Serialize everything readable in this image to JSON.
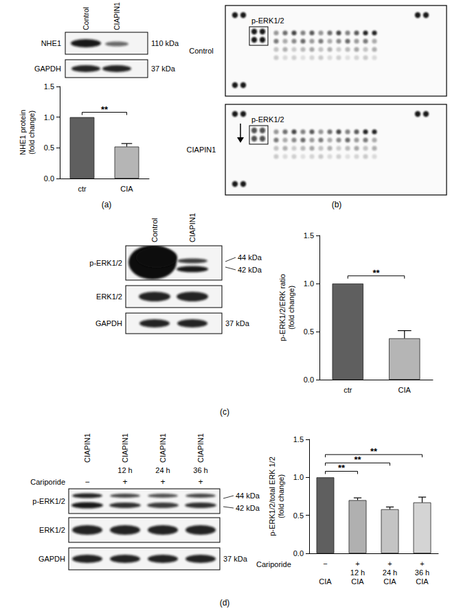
{
  "chart_data": [
    {
      "type": "bar",
      "categories": [
        "ctr",
        "CIA"
      ],
      "values": [
        1.0,
        0.52
      ],
      "errors": [
        0,
        0.05
      ],
      "colors": [
        "#5f5f5f",
        "#b5b5b5"
      ],
      "ylabel": "NHE1 protein\n(fold change)",
      "ylim": [
        0,
        1.5
      ],
      "yticks": [
        {
          "value": 0,
          "label": "0.0"
        },
        0.5,
        {
          "value": 1,
          "label": "1.0"
        },
        1.5
      ],
      "grid": false,
      "significance": [
        {
          "from": "ctr",
          "to": "CIA",
          "label": "**"
        }
      ]
    },
    {
      "type": "bar",
      "categories": [
        "ctr",
        "CIA"
      ],
      "values": [
        1.0,
        0.43
      ],
      "errors": [
        0,
        0.08
      ],
      "colors": [
        "#5f5f5f",
        "#b5b5b5"
      ],
      "ylabel": "p-ERK1/2/ERK ratio\n(fold change)",
      "ylim": [
        0,
        1.5
      ],
      "yticks": [
        {
          "value": 0,
          "label": "0.0"
        },
        0.5,
        {
          "value": 1,
          "label": "1.0"
        },
        1.5
      ],
      "grid": false,
      "significance": [
        {
          "from": "ctr",
          "to": "CIA",
          "label": "**"
        }
      ]
    },
    {
      "type": "bar",
      "categories": [
        "CIA",
        "12 h\nCIA",
        "24 h\nCIA",
        "36 h\nCIA"
      ],
      "values": [
        1.0,
        0.7,
        0.58,
        0.67
      ],
      "errors": [
        0,
        0.03,
        0.03,
        0.07
      ],
      "colors": [
        "#5f5f5f",
        "#b0b0b0",
        "#c4c4c4",
        "#d4d4d4"
      ],
      "treatment": {
        "label": "Cariporide",
        "values": [
          "−",
          "+",
          "+",
          "+"
        ]
      },
      "ylabel": "p-ERK1/2/total ERK 1/2\n(fold change)",
      "ylim": [
        0,
        1.5
      ],
      "yticks": [
        {
          "value": 0,
          "label": "0.0"
        },
        0.5,
        {
          "value": 1,
          "label": "1.0"
        },
        1.5
      ],
      "grid": false,
      "significance": [
        {
          "from": "CIA",
          "to": "12 h\nCIA",
          "label": "**"
        },
        {
          "from": "CIA",
          "to": "24 h\nCIA",
          "label": "**"
        },
        {
          "from": "CIA",
          "to": "36 h\nCIA",
          "label": "**"
        }
      ]
    }
  ],
  "panels": [
    {
      "label": "(a)",
      "blot": {
        "columns": [
          "Control",
          "CIAPIN1"
        ],
        "rows": [
          {
            "name": "NHE1",
            "kda": [
              "110 kDa"
            ]
          },
          {
            "name": "GAPDH",
            "kda": [
              "37 kDa"
            ]
          }
        ]
      }
    },
    {
      "label": "(b)",
      "array": {
        "membranes": [
          "Control",
          "CIAPIN1"
        ],
        "highlight": "p-ERK1/2"
      }
    },
    {
      "label": "(c)",
      "blot": {
        "columns": [
          "Control",
          "CIAPIN1"
        ],
        "rows": [
          {
            "name": "p-ERK1/2",
            "kda": [
              "44 kDa",
              "42 kDa"
            ]
          },
          {
            "name": "ERK1/2",
            "kda": []
          },
          {
            "name": "GAPDH",
            "kda": [
              "37 kDa"
            ]
          }
        ]
      }
    },
    {
      "label": "(d)",
      "blot": {
        "columns": [
          "CIAPIN1",
          "CIAPIN1",
          "CIAPIN1",
          "CIAPIN1"
        ],
        "times": [
          null,
          "12 h",
          "24 h",
          "36 h"
        ],
        "treatment": {
          "label": "Cariporide",
          "values": [
            "−",
            "+",
            "+",
            "+"
          ]
        },
        "rows": [
          {
            "name": "p-ERK1/2",
            "kda": [
              "44 kDa",
              "42 kDa"
            ]
          },
          {
            "name": "ERK1/2",
            "kda": []
          },
          {
            "name": "GAPDH",
            "kda": [
              "37 kDa"
            ]
          }
        ]
      }
    }
  ]
}
